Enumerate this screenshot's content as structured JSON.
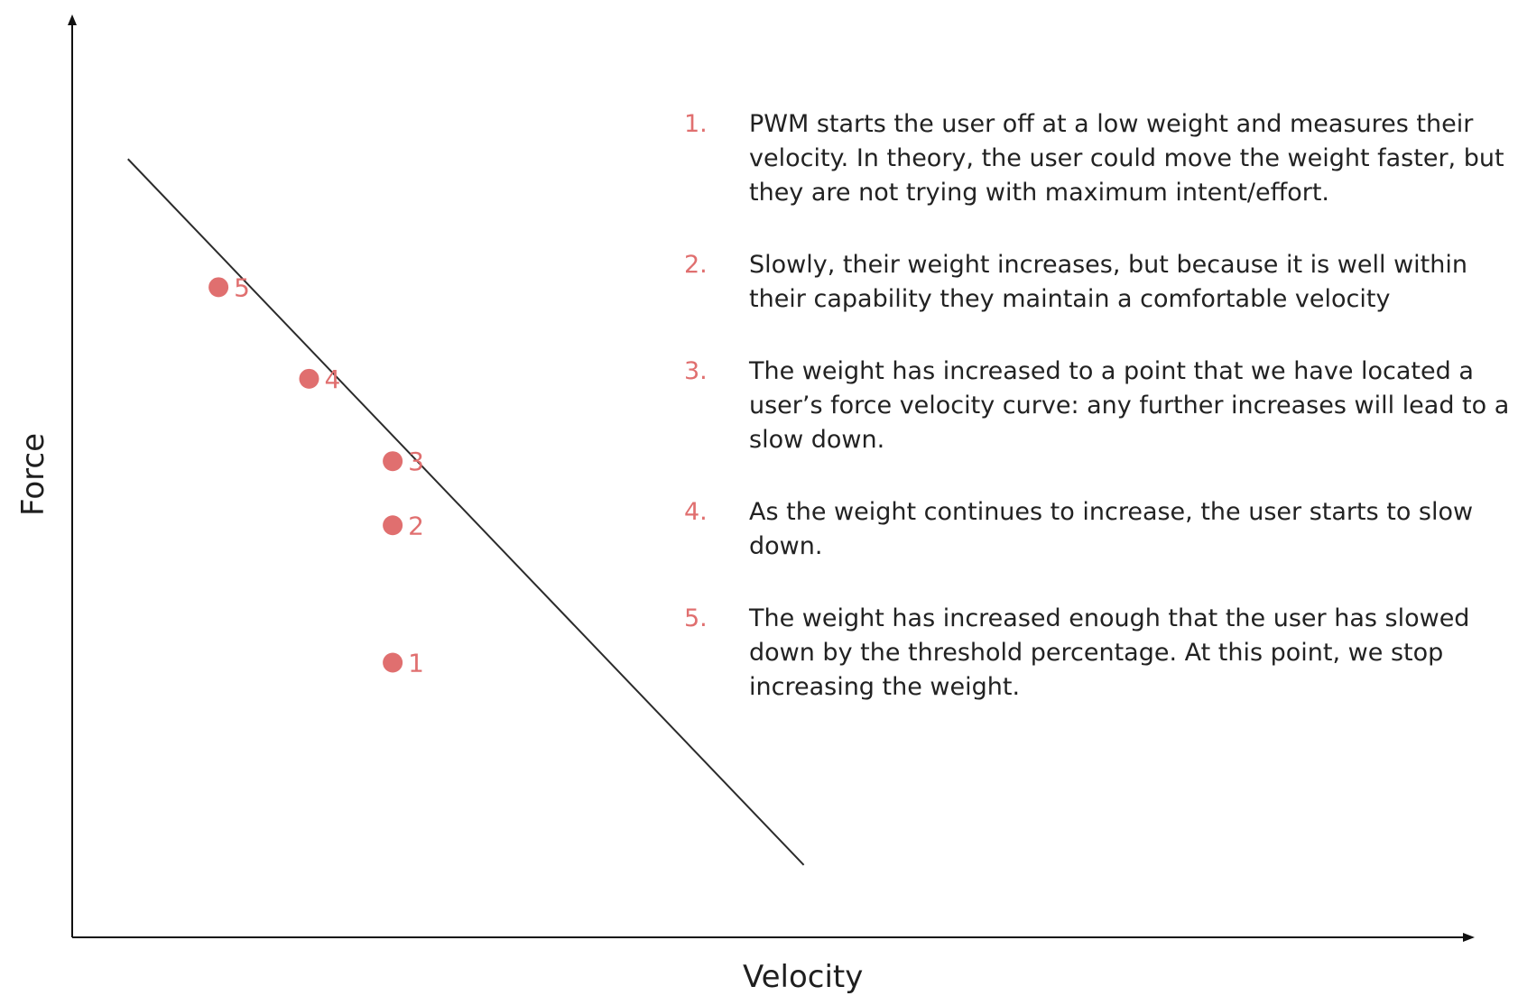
{
  "chart_data": {
    "type": "scatter",
    "xlabel": "Velocity",
    "ylabel": "Force",
    "xlim": [
      0,
      100
    ],
    "ylim": [
      0,
      100
    ],
    "grid": false,
    "legend": "none",
    "colors": {
      "points": "#e06f6f",
      "line": "#2b2b2b",
      "axes": "#111111"
    },
    "points": [
      {
        "label": "1",
        "x": 23.0,
        "y": 30.0
      },
      {
        "label": "2",
        "x": 23.0,
        "y": 45.0
      },
      {
        "label": "3",
        "x": 23.0,
        "y": 52.0
      },
      {
        "label": "4",
        "x": 17.0,
        "y": 61.0
      },
      {
        "label": "5",
        "x": 10.5,
        "y": 71.0
      }
    ],
    "trend_line": {
      "x": [
        4.0,
        52.5
      ],
      "y": [
        85.0,
        7.9
      ]
    }
  },
  "notes": [
    {
      "num": "1.",
      "text": "PWM starts the user off at a low weight and measures their velocity. In theory, the user could move the weight faster, but they are not trying with maximum intent/effort."
    },
    {
      "num": "2.",
      "text": "Slowly, their weight increases, but because it is well within their capability they maintain a comfortable velocity"
    },
    {
      "num": "3.",
      "text": "The weight has increased to a point that we have located a user’s force velocity curve: any further increases will lead to a slow down."
    },
    {
      "num": "4.",
      "text": "As the weight continues to increase, the user starts to slow down."
    },
    {
      "num": "5.",
      "text": "The weight has increased enough that the user has slowed down by the threshold percentage. At this point, we stop increasing the weight."
    }
  ]
}
